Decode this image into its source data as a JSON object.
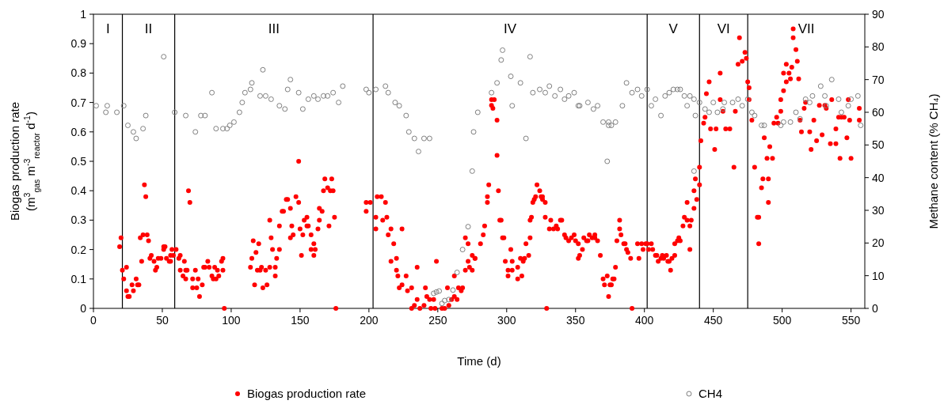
{
  "chart_data": {
    "type": "scatter",
    "xlabel": "Time (d)",
    "ylabel": "Biogas production rate\n(m$^{3}$$_{gas}$ m$^{-3}$$_{reactor}$ d$^{-1}$)",
    "y2label": "Methane content (% CH₄)",
    "xlim": [
      0,
      560
    ],
    "xticks": [
      0,
      50,
      100,
      150,
      200,
      250,
      300,
      350,
      400,
      450,
      500,
      550
    ],
    "ylim": [
      0,
      1
    ],
    "yticks": [
      0,
      0.1,
      0.2,
      0.3,
      0.4,
      0.5,
      0.6,
      0.7,
      0.8,
      0.9,
      1
    ],
    "y2lim": [
      0,
      90
    ],
    "y2ticks": [
      0,
      10,
      20,
      30,
      40,
      50,
      60,
      70,
      80,
      90
    ],
    "grid": false,
    "legend": "bottom",
    "marker": "circle",
    "ref_lines": [
      {
        "axis": "x",
        "value": 21,
        "color": "#000000"
      },
      {
        "axis": "x",
        "value": 59,
        "color": "#000000"
      },
      {
        "axis": "x",
        "value": 203,
        "color": "#000000"
      },
      {
        "axis": "x",
        "value": 402,
        "color": "#000000"
      },
      {
        "axis": "x",
        "value": 440,
        "color": "#000000"
      },
      {
        "axis": "x",
        "value": 475,
        "color": "#000000"
      }
    ],
    "annotations": [
      "I",
      "II",
      "III",
      "IV",
      "V",
      "VI",
      "VII"
    ],
    "series": [
      {
        "name": "Biogas production rate",
        "color": "#ff0000",
        "x": [
          19,
          20,
          21,
          22,
          24,
          24,
          25,
          26,
          28,
          29,
          31,
          32,
          33,
          34,
          35,
          36,
          37,
          38,
          39,
          40,
          41,
          42,
          44,
          45,
          46,
          47,
          49,
          51,
          51,
          52,
          53,
          55,
          56,
          56,
          57,
          58,
          60,
          62,
          63,
          63,
          65,
          66,
          67,
          67,
          68,
          69,
          70,
          72,
          72,
          74,
          75,
          76,
          77,
          79,
          80,
          81,
          83,
          84,
          86,
          87,
          88,
          89,
          90,
          91,
          93,
          94,
          94,
          95,
          114,
          115,
          116,
          117,
          118,
          119,
          120,
          121,
          122,
          123,
          125,
          126,
          128,
          128,
          129,
          130,
          132,
          132,
          133,
          135,
          135,
          137,
          138,
          140,
          141,
          143,
          143,
          144,
          145,
          147,
          149,
          149,
          150,
          151,
          152,
          153,
          155,
          155,
          156,
          158,
          158,
          160,
          160,
          161,
          163,
          164,
          164,
          166,
          167,
          168,
          170,
          171,
          172,
          173,
          174,
          175,
          176,
          198,
          198,
          201,
          205,
          205,
          206,
          209,
          210,
          212,
          213,
          214,
          216,
          216,
          218,
          220,
          220,
          221,
          222,
          224,
          224,
          227,
          228,
          231,
          231,
          233,
          235,
          235,
          237,
          240,
          241,
          242,
          244,
          245,
          247,
          248,
          249,
          253,
          255,
          257,
          258,
          260,
          262,
          262,
          264,
          265,
          267,
          268,
          270,
          270,
          272,
          272,
          273,
          275,
          275,
          277,
          277,
          281,
          283,
          284,
          286,
          286,
          287,
          289,
          289,
          290,
          291,
          293,
          293,
          294,
          295,
          296,
          297,
          298,
          299,
          301,
          301,
          303,
          304,
          304,
          308,
          308,
          310,
          311,
          312,
          313,
          314,
          316,
          317,
          317,
          318,
          319,
          320,
          321,
          322,
          324,
          325,
          326,
          326,
          328,
          328,
          329,
          331,
          332,
          334,
          336,
          337,
          339,
          340,
          342,
          343,
          345,
          347,
          349,
          350,
          352,
          352,
          353,
          355,
          356,
          358,
          359,
          360,
          362,
          364,
          364,
          366,
          368,
          370,
          371,
          373,
          374,
          375,
          376,
          377,
          378,
          379,
          380,
          382,
          382,
          383,
          385,
          386,
          387,
          388,
          390,
          391,
          395,
          396,
          398,
          399,
          401,
          402,
          403,
          405,
          406,
          408,
          409,
          410,
          412,
          413,
          414,
          416,
          417,
          418,
          419,
          420,
          422,
          422,
          424,
          425,
          426,
          428,
          429,
          431,
          431,
          433,
          433,
          434,
          436,
          436,
          437,
          438,
          440,
          440,
          441,
          443,
          444,
          445,
          447,
          448,
          451,
          452,
          455,
          455,
          457,
          459,
          462,
          465,
          466,
          468,
          469,
          471,
          473,
          474,
          475,
          476,
          476,
          478,
          480,
          482,
          483,
          483,
          485,
          486,
          487,
          489,
          490,
          490,
          491,
          493,
          494,
          496,
          497,
          499,
          499,
          501,
          501,
          503,
          503,
          505,
          506,
          507,
          508,
          508,
          510,
          511,
          512,
          513,
          514,
          516,
          517,
          520,
          521,
          523,
          525,
          527,
          529,
          531,
          532,
          535,
          536,
          539,
          539,
          541,
          542,
          543,
          545,
          547,
          548,
          549,
          550,
          556,
          556
        ],
        "values": [
          0.21,
          0.24,
          0.13,
          0.1,
          0.14,
          0.06,
          0.04,
          0.04,
          0.08,
          0.06,
          0.1,
          0.08,
          0.08,
          0.24,
          0.16,
          0.25,
          0.42,
          0.38,
          0.25,
          0.23,
          0.17,
          0.18,
          0.16,
          0.13,
          0.14,
          0.17,
          0.17,
          0.21,
          0.2,
          0.21,
          0.17,
          0.16,
          0.16,
          0.18,
          0.2,
          0.18,
          0.2,
          0.17,
          0.18,
          0.13,
          0.11,
          0.16,
          0.13,
          0.1,
          0.13,
          0.4,
          0.36,
          0.1,
          0.07,
          0.13,
          0.07,
          0.1,
          0.04,
          0.08,
          0.14,
          0.14,
          0.16,
          0.14,
          0.11,
          0.1,
          0.14,
          0.1,
          0.13,
          0.11,
          0.16,
          0.17,
          0.13,
          0,
          0.14,
          0.17,
          0.23,
          0.08,
          0.19,
          0.13,
          0.22,
          0.13,
          0.14,
          0.07,
          0.13,
          0.08,
          0.14,
          0.3,
          0.24,
          0.2,
          0.11,
          0.14,
          0.17,
          0.2,
          0.28,
          0.33,
          0.33,
          0.37,
          0.37,
          0.34,
          0.24,
          0.28,
          0.25,
          0.38,
          0.5,
          0.36,
          0.27,
          0.18,
          0.25,
          0.3,
          0.31,
          0.28,
          0.28,
          0.25,
          0.2,
          0.22,
          0.18,
          0.2,
          0.27,
          0.3,
          0.34,
          0.33,
          0.4,
          0.44,
          0.41,
          0.28,
          0.4,
          0.44,
          0.4,
          0.31,
          0,
          0.33,
          0.36,
          0.36,
          0.31,
          0.27,
          0.38,
          0.38,
          0.3,
          0.36,
          0.31,
          0.25,
          0.16,
          0.27,
          0.22,
          0.17,
          0.13,
          0.11,
          0.07,
          0.27,
          0.08,
          0.11,
          0.06,
          0.07,
          0,
          0.01,
          0.14,
          0.03,
          0,
          0.01,
          0.07,
          0.04,
          0.03,
          0,
          0.03,
          0,
          0.16,
          0,
          0,
          0.07,
          0.01,
          0.03,
          0.04,
          0.11,
          0.03,
          0.07,
          0.06,
          0.07,
          0.13,
          0.24,
          0.16,
          0.22,
          0.14,
          0.13,
          0.18,
          0.17,
          0.17,
          0.22,
          0.25,
          0.28,
          0.36,
          0.38,
          0.42,
          0.71,
          0.69,
          0.68,
          0.71,
          0.64,
          0.52,
          0.4,
          0.3,
          0.3,
          0.24,
          0.24,
          0.16,
          0.11,
          0.13,
          0.2,
          0.16,
          0.13,
          0.1,
          0.14,
          0.17,
          0.11,
          0.16,
          0.17,
          0.22,
          0.18,
          0.24,
          0.3,
          0.31,
          0.36,
          0.37,
          0.38,
          0.42,
          0.4,
          0.38,
          0.37,
          0.38,
          0.36,
          0.31,
          0,
          0.27,
          0.3,
          0.27,
          0.28,
          0.27,
          0.3,
          0.3,
          0.25,
          0.24,
          0.23,
          0.24,
          0.25,
          0.23,
          0.22,
          0.17,
          0.18,
          0.2,
          0.24,
          0.23,
          0.23,
          0.25,
          0.24,
          0.25,
          0.24,
          0.23,
          0.18,
          0.1,
          0.08,
          0.11,
          0.04,
          0.08,
          0.08,
          0.1,
          0.1,
          0.14,
          0.23,
          0.27,
          0.3,
          0.25,
          0.22,
          0.22,
          0.2,
          0.19,
          0.17,
          0,
          0.22,
          0.17,
          0.22,
          0.2,
          0.22,
          0.22,
          0.2,
          0.22,
          0.2,
          0.18,
          0.18,
          0.16,
          0.17,
          0.18,
          0.17,
          0.18,
          0.16,
          0.16,
          0.13,
          0.17,
          0.18,
          0.22,
          0.23,
          0.24,
          0.23,
          0.28,
          0.31,
          0.3,
          0.36,
          0.28,
          0.2,
          0.3,
          0.34,
          0.4,
          0.44,
          0.37,
          0.42,
          0.48,
          0.57,
          0.63,
          0.65,
          0.73,
          0.77,
          0.61,
          0.54,
          0.61,
          0.8,
          0.71,
          0.67,
          0.61,
          0.61,
          0.48,
          0.67,
          0.83,
          0.92,
          0.84,
          0.87,
          0.85,
          0.77,
          0.75,
          0.71,
          0.64,
          0.48,
          0.31,
          0.22,
          0.31,
          0.41,
          0.44,
          0.58,
          0.51,
          0.36,
          0.44,
          0.55,
          0.51,
          0.63,
          0.65,
          0.63,
          0.67,
          0.71,
          0.74,
          0.8,
          0.83,
          0.77,
          0.8,
          0.78,
          0.82,
          0.92,
          0.95,
          0.88,
          0.84,
          0.78,
          0.64,
          0.6,
          0.68,
          0.7,
          0.6,
          0.54,
          0.64,
          0.57,
          0.69,
          0.59,
          0.69,
          0.68,
          0.56,
          0.71,
          0.56,
          0.61,
          0.65,
          0.51,
          0.65,
          0.65,
          0.58,
          0.71,
          0.64,
          0.51,
          0.64,
          0.68
        ]
      },
      {
        "name": "CH4",
        "color": "#808080",
        "axis": "y2",
        "x": [
          2,
          9,
          10,
          17,
          22,
          25,
          29,
          31,
          36,
          38,
          51,
          59,
          67,
          74,
          78,
          81,
          86,
          89,
          94,
          97,
          99,
          102,
          106,
          108,
          110,
          114,
          115,
          121,
          123,
          125,
          129,
          135,
          139,
          141,
          143,
          149,
          152,
          156,
          160,
          163,
          167,
          170,
          174,
          178,
          181,
          198,
          200,
          205,
          212,
          214,
          219,
          222,
          227,
          229,
          233,
          236,
          240,
          244,
          247,
          249,
          251,
          253,
          255,
          258,
          261,
          264,
          268,
          272,
          275,
          276,
          279,
          289,
          293,
          296,
          297,
          303,
          304,
          310,
          314,
          317,
          319,
          324,
          328,
          331,
          335,
          339,
          342,
          345,
          349,
          352,
          353,
          359,
          363,
          366,
          370,
          373,
          374,
          374,
          376,
          379,
          384,
          387,
          391,
          395,
          398,
          402,
          405,
          408,
          412,
          415,
          418,
          421,
          424,
          426,
          429,
          431,
          433,
          436,
          436,
          437,
          440,
          444,
          447,
          450,
          453,
          457,
          458,
          464,
          468,
          471,
          475,
          478,
          480,
          485,
          487,
          499,
          501,
          506,
          510,
          513,
          517,
          520,
          522,
          528,
          531,
          532,
          536,
          541,
          543,
          548,
          550,
          555,
          557
        ],
        "values": [
          62,
          60,
          62,
          60,
          62,
          56,
          54,
          52,
          55,
          59,
          77,
          60,
          59,
          54,
          59,
          59,
          66,
          55,
          55,
          55,
          56,
          57,
          60,
          63,
          66,
          67,
          69,
          65,
          73,
          65,
          64,
          62,
          61,
          67,
          70,
          66,
          61,
          64,
          65,
          64,
          65,
          65,
          66,
          63,
          68,
          67,
          66,
          67,
          68,
          66,
          63,
          62,
          59,
          54,
          52,
          48,
          52,
          52,
          4.6,
          5,
          5.3,
          1.5,
          2.4,
          2.7,
          5.6,
          11,
          18,
          25,
          42,
          54,
          60,
          66,
          69,
          76,
          79,
          71,
          62,
          69,
          52,
          77,
          66,
          67,
          66,
          68,
          65,
          67,
          64,
          65,
          66,
          62,
          62,
          63,
          61,
          62,
          57,
          45,
          57,
          56,
          56,
          57,
          62,
          69,
          66,
          67,
          65,
          67,
          62,
          64,
          59,
          65,
          66,
          67,
          67,
          67,
          65,
          62,
          65,
          64,
          42,
          59,
          63,
          61,
          60,
          63,
          60,
          61,
          63,
          63,
          64,
          62,
          64,
          60,
          59,
          56,
          56,
          56,
          57,
          57,
          60,
          58,
          64,
          63,
          65,
          68,
          65,
          62,
          70,
          64,
          60,
          62,
          64,
          65,
          56
        ]
      }
    ]
  }
}
